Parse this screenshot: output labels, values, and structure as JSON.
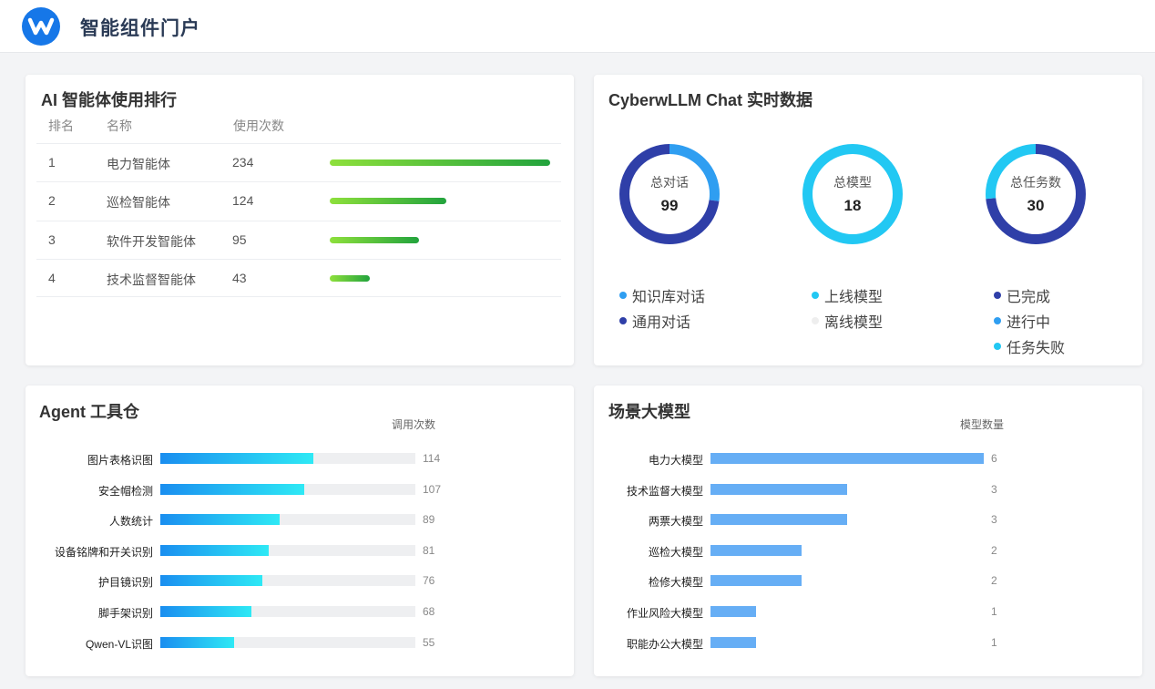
{
  "header": {
    "title": "智能组件门户",
    "logo_icon": "w-logo-icon"
  },
  "ranking": {
    "title": "AI 智能体使用排行",
    "columns": {
      "rank": "排名",
      "name": "名称",
      "count": "使用次数"
    },
    "max": 234,
    "rows": [
      {
        "rank": "1",
        "name": "电力智能体",
        "count": 234
      },
      {
        "rank": "2",
        "name": "巡检智能体",
        "count": 124
      },
      {
        "rank": "3",
        "name": "软件开发智能体",
        "count": 95
      },
      {
        "rank": "4",
        "name": "技术监督智能体",
        "count": 43
      }
    ]
  },
  "chat": {
    "title": "CyberwLLM Chat 实时数据",
    "donuts": [
      {
        "label": "总对话",
        "value": "99",
        "segments": [
          {
            "name": "知识库对话",
            "value": 27,
            "color": "#2f9ef1"
          },
          {
            "name": "通用对话",
            "value": 72,
            "color": "#2f3fa8"
          }
        ]
      },
      {
        "label": "总模型",
        "value": "18",
        "segments": [
          {
            "name": "上线模型",
            "value": 18,
            "color": "#22c8f3"
          },
          {
            "name": "离线模型",
            "value": 0,
            "color": "#eeeeee"
          }
        ]
      },
      {
        "label": "总任务数",
        "value": "30",
        "segments": [
          {
            "name": "已完成",
            "value": 22,
            "color": "#2f3fa8"
          },
          {
            "name": "进行中",
            "value": 0,
            "color": "#2f9ef1"
          },
          {
            "name": "任务失败",
            "value": 8,
            "color": "#22c8f3"
          }
        ]
      }
    ]
  },
  "tools": {
    "title": "Agent 工具仓",
    "column_header": "调用次数",
    "max": 190,
    "rows": [
      {
        "name": "图片表格识图",
        "value": 114
      },
      {
        "name": "安全帽检测",
        "value": 107
      },
      {
        "name": "人数统计",
        "value": 89
      },
      {
        "name": "设备铭牌和开关识别",
        "value": 81
      },
      {
        "name": "护目镜识别",
        "value": 76
      },
      {
        "name": "脚手架识别",
        "value": 68
      },
      {
        "name": "Qwen-VL识图",
        "value": 55
      }
    ]
  },
  "models": {
    "title": "场景大模型",
    "column_header": "模型数量",
    "max": 6,
    "rows": [
      {
        "name": "电力大模型",
        "value": 6
      },
      {
        "name": "技术监督大模型",
        "value": 3
      },
      {
        "name": "两票大模型",
        "value": 3
      },
      {
        "name": "巡检大模型",
        "value": 2
      },
      {
        "name": "检修大模型",
        "value": 2
      },
      {
        "name": "作业风险大模型",
        "value": 1
      },
      {
        "name": "职能办公大模型",
        "value": 1
      }
    ]
  }
}
